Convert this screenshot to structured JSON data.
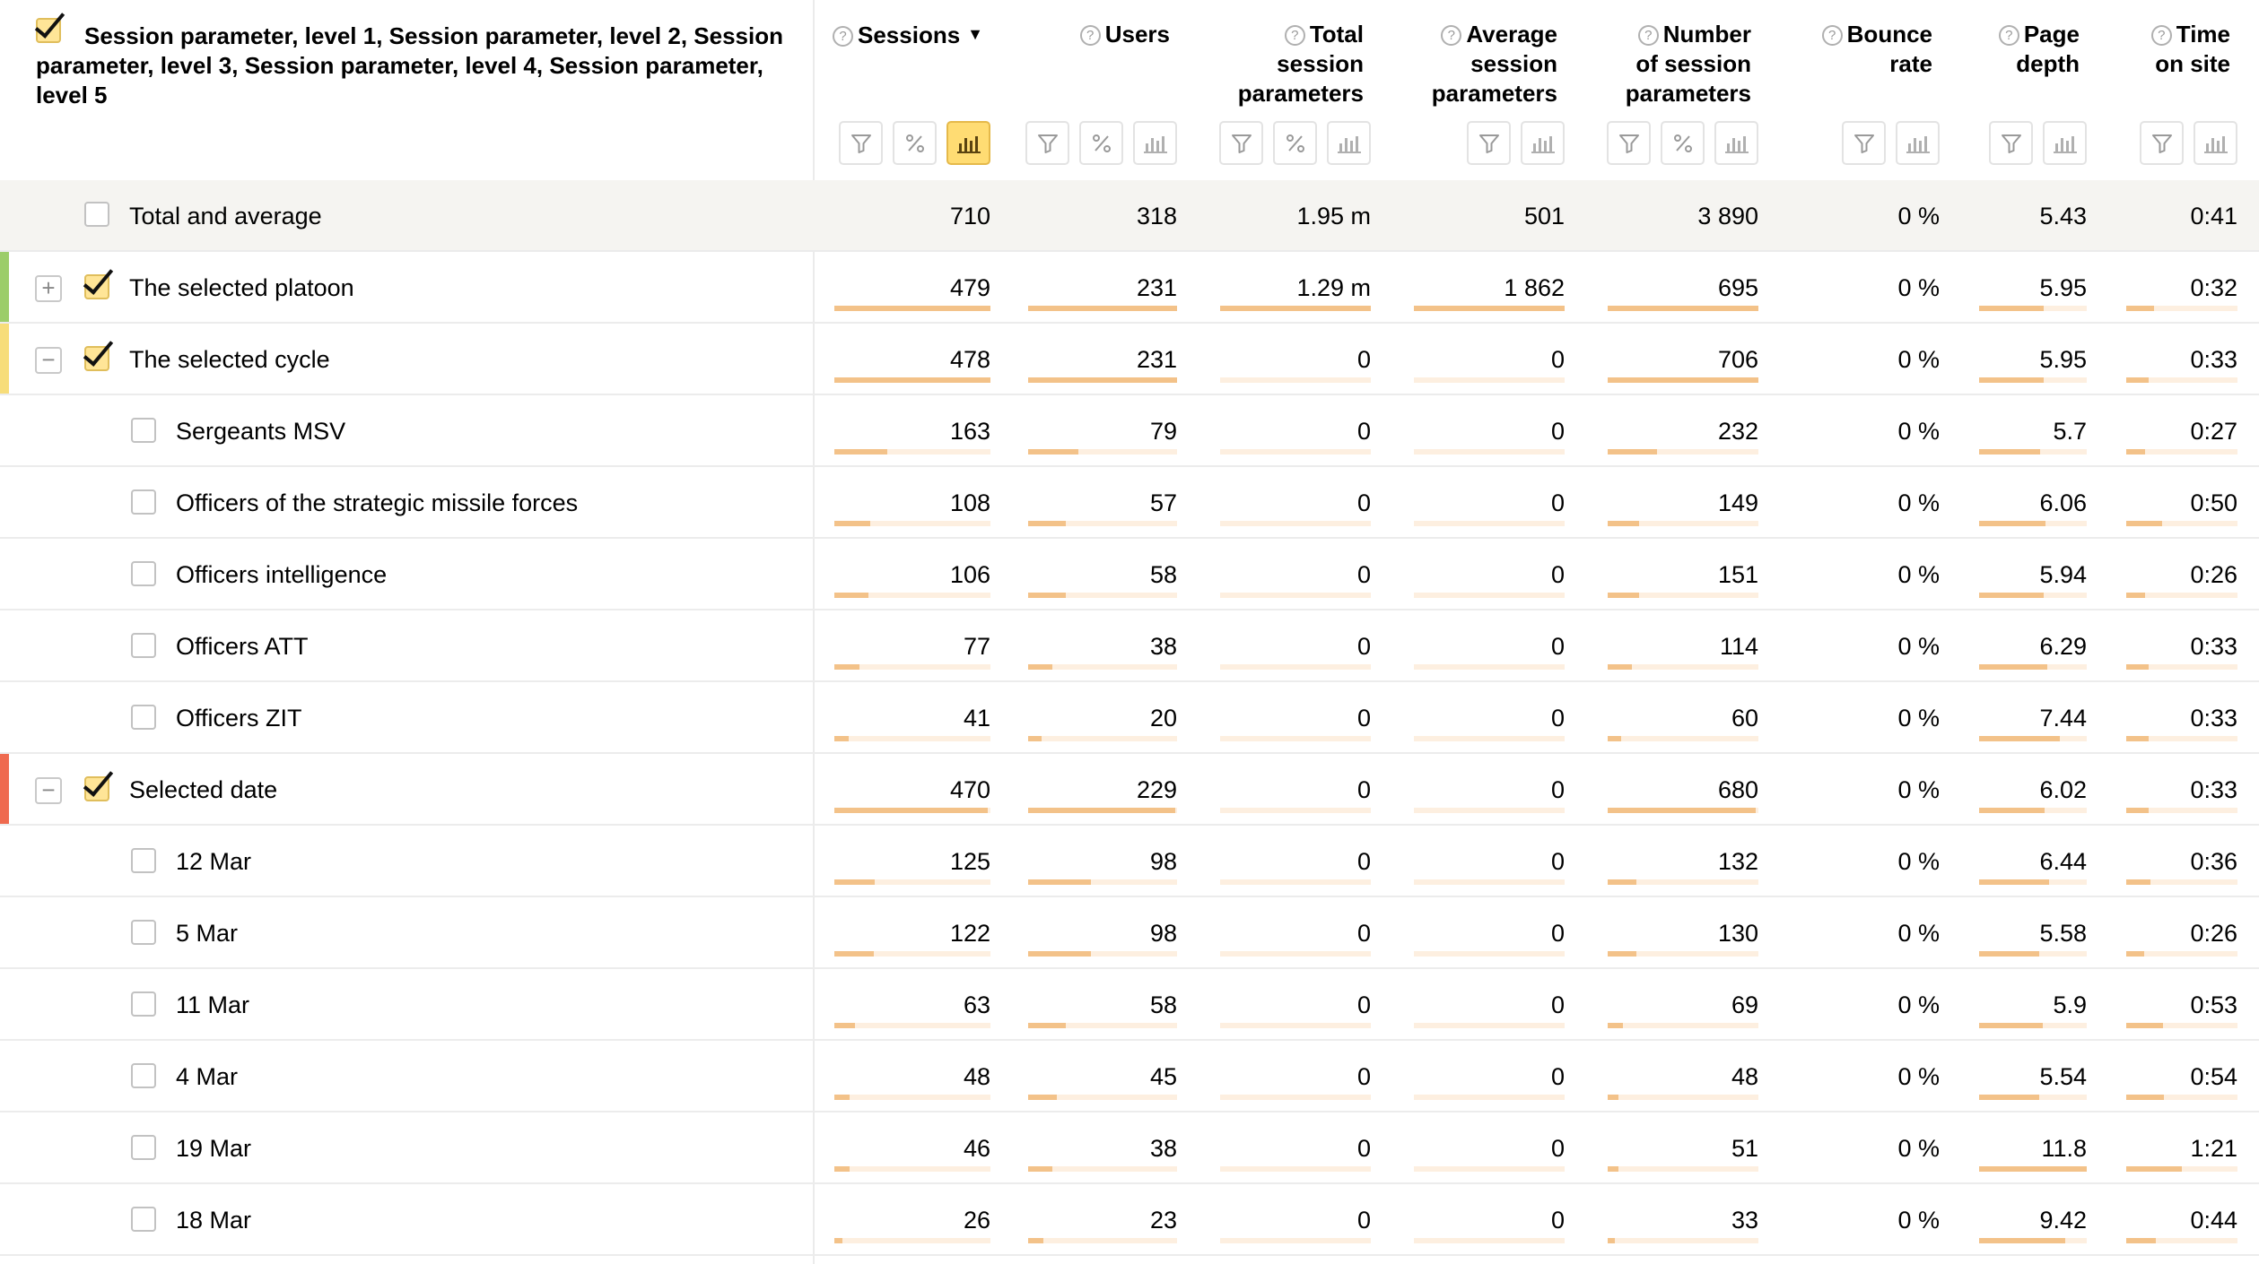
{
  "header": {
    "dimension_title": "Session parameter, level 1, Session parameter, level 2, Session parameter, level 3, Session parameter, level 4, Session parameter, level 5",
    "sort_indicator": "▼",
    "help_glyph": "?",
    "metrics": [
      {
        "title": "Sessions",
        "buttons": [
          "filter",
          "percent",
          "chart"
        ],
        "chart_active": true,
        "sorted": true
      },
      {
        "title": "Users",
        "buttons": [
          "filter",
          "percent",
          "chart"
        ]
      },
      {
        "title": "Total session parameters",
        "buttons": [
          "filter",
          "percent",
          "chart"
        ]
      },
      {
        "title": "Average session parameters",
        "buttons": [
          "filter",
          "chart"
        ]
      },
      {
        "title": "Number of session parameters",
        "buttons": [
          "filter",
          "percent",
          "chart"
        ]
      },
      {
        "title": "Bounce rate",
        "buttons": [
          "filter",
          "chart"
        ]
      },
      {
        "title": "Page depth",
        "buttons": [
          "filter",
          "chart"
        ]
      },
      {
        "title": "Time on site",
        "buttons": [
          "filter",
          "chart"
        ]
      }
    ]
  },
  "colors": {
    "platoon_accent": "#9ccd6a",
    "cycle_accent": "#f7dd7a",
    "date_accent": "#ef6a4f",
    "bar_fill": "#f3c289",
    "bar_track": "#fdefe0",
    "active_button": "#ffdc73"
  },
  "rows": [
    {
      "type": "total",
      "label": "Total and average",
      "checked": false,
      "values": [
        "710",
        "318",
        "1.95 m",
        "501",
        "3 890",
        "0 %",
        "5.43",
        "0:41"
      ]
    },
    {
      "type": "group",
      "label": "The selected platoon",
      "checked": true,
      "expander": "+",
      "accent": "#9ccd6a",
      "values": [
        "479",
        "231",
        "1.29 m",
        "1 862",
        "695",
        "0 %",
        "5.95",
        "0:32"
      ],
      "bars": [
        1,
        1,
        1,
        1,
        1,
        null,
        0.6,
        0.25
      ]
    },
    {
      "type": "group",
      "label": "The selected cycle",
      "checked": true,
      "expander": "−",
      "accent": "#f7dd7a",
      "values": [
        "478",
        "231",
        "0",
        "0",
        "706",
        "0 %",
        "5.95",
        "0:33"
      ],
      "bars": [
        1,
        1,
        0,
        0,
        1,
        null,
        0.6,
        0.2
      ]
    },
    {
      "type": "child",
      "label": "Sergeants MSV",
      "checked": false,
      "values": [
        "163",
        "79",
        "0",
        "0",
        "232",
        "0 %",
        "5.7",
        "0:27"
      ],
      "bars": [
        0.34,
        0.34,
        0,
        0,
        0.33,
        null,
        0.57,
        0.17
      ]
    },
    {
      "type": "child",
      "label": "Officers of the strategic missile forces",
      "checked": false,
      "values": [
        "108",
        "57",
        "0",
        "0",
        "149",
        "0 %",
        "6.06",
        "0:50"
      ],
      "bars": [
        0.23,
        0.25,
        0,
        0,
        0.21,
        null,
        0.62,
        0.32
      ]
    },
    {
      "type": "child",
      "label": "Officers intelligence",
      "checked": false,
      "values": [
        "106",
        "58",
        "0",
        "0",
        "151",
        "0 %",
        "5.94",
        "0:26"
      ],
      "bars": [
        0.22,
        0.25,
        0,
        0,
        0.21,
        null,
        0.6,
        0.17
      ]
    },
    {
      "type": "child",
      "label": "Officers ATT",
      "checked": false,
      "values": [
        "77",
        "38",
        "0",
        "0",
        "114",
        "0 %",
        "6.29",
        "0:33"
      ],
      "bars": [
        0.16,
        0.16,
        0,
        0,
        0.16,
        null,
        0.63,
        0.2
      ]
    },
    {
      "type": "child",
      "label": "Officers ZIT",
      "checked": false,
      "values": [
        "41",
        "20",
        "0",
        "0",
        "60",
        "0 %",
        "7.44",
        "0:33"
      ],
      "bars": [
        0.09,
        0.09,
        0,
        0,
        0.09,
        null,
        0.75,
        0.2
      ]
    },
    {
      "type": "group",
      "label": "Selected date",
      "checked": true,
      "expander": "−",
      "accent": "#ef6a4f",
      "values": [
        "470",
        "229",
        "0",
        "0",
        "680",
        "0 %",
        "6.02",
        "0:33"
      ],
      "bars": [
        0.98,
        0.99,
        0,
        0,
        0.98,
        null,
        0.61,
        0.2
      ]
    },
    {
      "type": "child",
      "label": "12 Mar",
      "checked": false,
      "values": [
        "125",
        "98",
        "0",
        "0",
        "132",
        "0 %",
        "6.44",
        "0:36"
      ],
      "bars": [
        0.26,
        0.42,
        0,
        0,
        0.19,
        null,
        0.65,
        0.22
      ]
    },
    {
      "type": "child",
      "label": "5 Mar",
      "checked": false,
      "values": [
        "122",
        "98",
        "0",
        "0",
        "130",
        "0 %",
        "5.58",
        "0:26"
      ],
      "bars": [
        0.25,
        0.42,
        0,
        0,
        0.19,
        null,
        0.56,
        0.16
      ]
    },
    {
      "type": "child",
      "label": "11 Mar",
      "checked": false,
      "values": [
        "63",
        "58",
        "0",
        "0",
        "69",
        "0 %",
        "5.9",
        "0:53"
      ],
      "bars": [
        0.13,
        0.25,
        0,
        0,
        0.1,
        null,
        0.59,
        0.33
      ]
    },
    {
      "type": "child",
      "label": "4 Mar",
      "checked": false,
      "values": [
        "48",
        "45",
        "0",
        "0",
        "48",
        "0 %",
        "5.54",
        "0:54"
      ],
      "bars": [
        0.1,
        0.19,
        0,
        0,
        0.07,
        null,
        0.56,
        0.34
      ]
    },
    {
      "type": "child",
      "label": "19 Mar",
      "checked": false,
      "values": [
        "46",
        "38",
        "0",
        "0",
        "51",
        "0 %",
        "11.8",
        "1:21"
      ],
      "bars": [
        0.1,
        0.16,
        0,
        0,
        0.07,
        null,
        1,
        0.5
      ]
    },
    {
      "type": "child",
      "label": "18 Mar",
      "checked": false,
      "values": [
        "26",
        "23",
        "0",
        "0",
        "33",
        "0 %",
        "9.42",
        "0:44"
      ],
      "bars": [
        0.05,
        0.1,
        0,
        0,
        0.05,
        null,
        0.8,
        0.27
      ]
    }
  ]
}
